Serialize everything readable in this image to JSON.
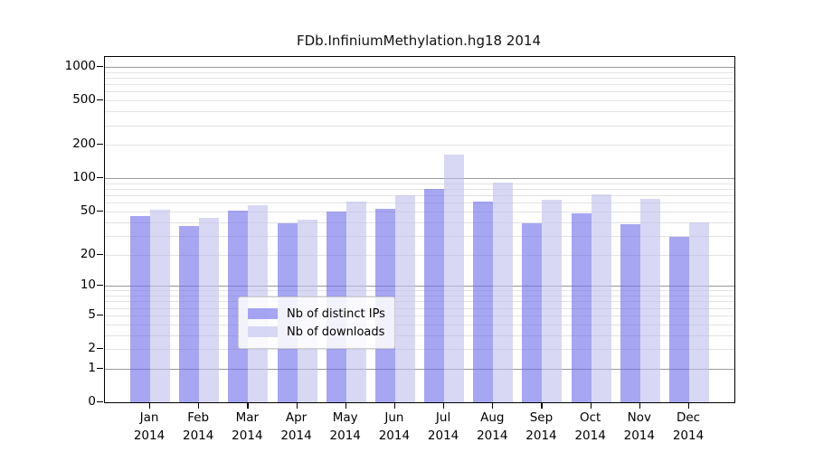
{
  "title": "FDb.InfiniumMethylation.hg18 2014",
  "colors": {
    "background": "#ffffff",
    "spine": "#000000",
    "grid_major": "#999999",
    "grid_minor": "#e3e3e3",
    "series_ips_displayed": "#a6a6f2",
    "series_downloads_displayed": "#d8d8f5"
  },
  "legend": {
    "entries": [
      "Nb of distinct IPs",
      "Nb of downloads"
    ]
  },
  "chart_data": {
    "type": "bar",
    "title": "FDb.InfiniumMethylation.hg18 2014",
    "xlabel": "",
    "ylabel": "",
    "scale": "log1p",
    "grid": true,
    "legend_position": "bottom-center",
    "categories": [
      "Jan 2014",
      "Feb 2014",
      "Mar 2014",
      "Apr 2014",
      "May 2014",
      "Jun 2014",
      "Jul 2014",
      "Aug 2014",
      "Sep 2014",
      "Oct 2014",
      "Nov 2014",
      "Dec 2014"
    ],
    "series": [
      {
        "name": "Nb of distinct IPs",
        "color": "#6b6be9",
        "opacity": 0.6,
        "values": [
          45,
          37,
          51,
          39,
          50,
          53,
          80,
          61,
          39,
          48,
          38,
          29
        ]
      },
      {
        "name": "Nb of downloads",
        "color": "#bebeee",
        "opacity": 0.6,
        "values": [
          52,
          44,
          57,
          42,
          61,
          70,
          165,
          92,
          64,
          72,
          65,
          40
        ]
      }
    ],
    "yticks": [
      0,
      1,
      2,
      5,
      10,
      20,
      50,
      100,
      200,
      500,
      1000
    ],
    "major_grid": [
      1,
      10,
      100,
      1000
    ],
    "minor_grid": [
      2,
      3,
      4,
      5,
      6,
      7,
      8,
      9,
      20,
      30,
      40,
      50,
      60,
      70,
      80,
      90,
      200,
      300,
      400,
      500,
      600,
      700,
      800,
      900
    ],
    "ylim": [
      0,
      1230
    ]
  }
}
